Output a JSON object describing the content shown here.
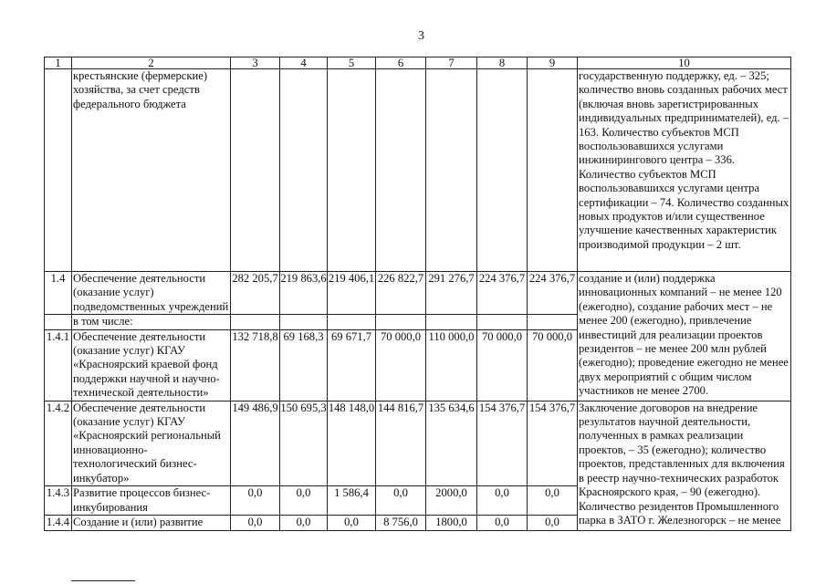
{
  "page_number": "3",
  "table": {
    "headers": [
      "1",
      "2",
      "3",
      "4",
      "5",
      "6",
      "7",
      "8",
      "9",
      "10"
    ],
    "rows": [
      {
        "no": "",
        "name": "крестьянские (фермерские) хозяйства, за счет средств федерального бюджета",
        "values": [
          "",
          "",
          "",
          "",
          "",
          "",
          ""
        ],
        "result": "государственную поддержку, ед. – 325; количество вновь созданных рабочих мест (включая вновь зарегистрированных индивидуальных предпринимателей), ед. – 163. Количество субъектов МСП воспользовавшихся услугами инжинирингового центра – 336. Количество субъектов МСП воспользовавшихся услугами центра сертификации – 74. Количество созданных новых продуктов и/или существенное улучшение качественных характеристик производимой продукции – 2 шт."
      },
      {
        "no": "1.4",
        "name": "Обеспечение деятельности (оказание услуг) подведомственных учреждений",
        "values": [
          "282 205,7",
          "219 863,6",
          "219 406,1",
          "226 822,7",
          "291 276,7",
          "224 376,7",
          "224 376,7"
        ],
        "result": "создание и (или) поддержка инновационных компаний – не менее 120 (ежегодно), создание рабочих мест – не менее 200 (ежегодно), привлечение инвестиций для реализации проектов резидентов – не менее 200 млн рублей (ежегодно); проведение ежегодно не менее двух мероприятий с общим числом участников не менее 2700."
      },
      {
        "no": "",
        "name": "в том числе:",
        "values": [
          "",
          "",
          "",
          "",
          "",
          "",
          ""
        ]
      },
      {
        "no": "1.4.1",
        "name": "Обеспечение деятельности (оказание услуг) КГАУ «Красноярский краевой фонд поддержки научной и научно-технической деятельности»",
        "values": [
          "132 718,8",
          "69 168,3",
          "69 671,7",
          "70 000,0",
          "110 000,0",
          "70 000,0",
          "70 000,0"
        ]
      },
      {
        "no": "1.4.2",
        "name": "Обеспечение деятельности (оказание услуг) КГАУ «Красноярский региональный инновационно-технологический бизнес-инкубатор»",
        "values": [
          "149 486,9",
          "150 695,3",
          "148 148,0",
          "144 816,7",
          "135 634,6",
          "154 376,7",
          "154 376,7"
        ],
        "result": "Заключение договоров на внедрение результатов научной деятельности, полученных в рамках реализации проектов, – 35 (ежегодно); количество проектов, представленных для включения в реестр научно-технических разработок Красноярского края, – 90 (ежегодно). Количество резидентов Промышленного парка в ЗАТО г. Железногорск – не менее"
      },
      {
        "no": "1.4.3",
        "name": "Развитие процессов бизнес-инкубирования",
        "values": [
          "0,0",
          "0,0",
          "1 586,4",
          "0,0",
          "2000,0",
          "0,0",
          "0,0"
        ]
      },
      {
        "no": "1.4.4",
        "name": "Создание и (или) развитие",
        "values": [
          "0,0",
          "0,0",
          "0,0",
          "8 756,0",
          "1800,0",
          "0,0",
          "0,0"
        ]
      }
    ]
  }
}
